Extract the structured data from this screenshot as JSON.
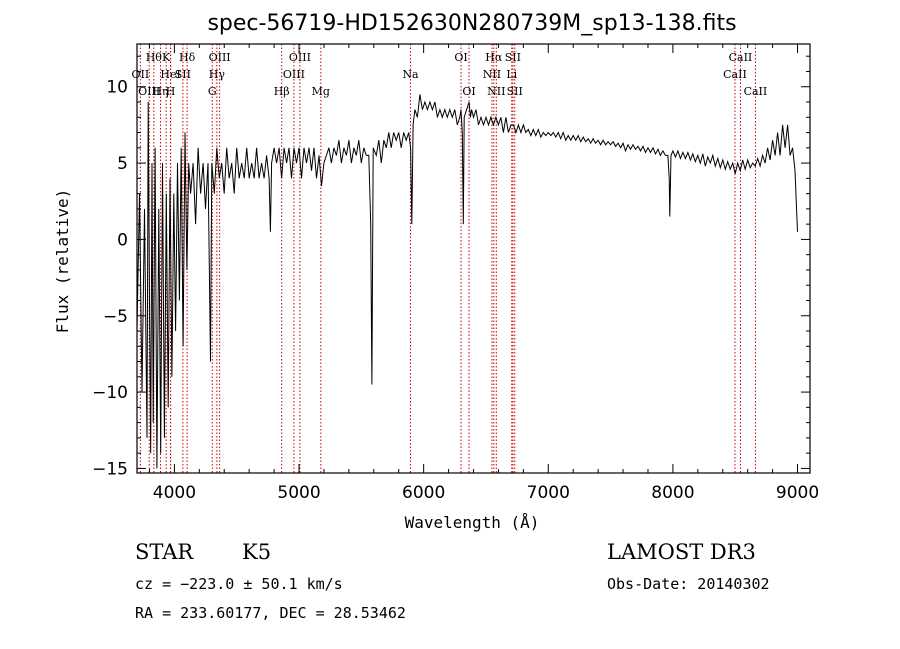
{
  "chart_data": {
    "type": "line",
    "title": "spec-56719-HD152630N280739M_sp13-138.fits",
    "xlabel": "Wavelength (Å)",
    "ylabel": "Flux (relative)",
    "xlim": [
      3700,
      9100
    ],
    "ylim": [
      -15.3,
      12.8
    ],
    "x_ticks": [
      4000,
      5000,
      6000,
      7000,
      8000,
      9000
    ],
    "y_ticks": [
      -15,
      -10,
      -5,
      0,
      5,
      10
    ],
    "grid": false,
    "line_color": "#000000",
    "marker_color": "#cc0000",
    "series": [
      {
        "values": [
          [
            3700,
            -6
          ],
          [
            3720,
            3
          ],
          [
            3740,
            -10
          ],
          [
            3760,
            2
          ],
          [
            3780,
            -13
          ],
          [
            3790,
            9
          ],
          [
            3800,
            -4
          ],
          [
            3810,
            -14
          ],
          [
            3820,
            5
          ],
          [
            3830,
            -12
          ],
          [
            3845,
            6
          ],
          [
            3860,
            -15
          ],
          [
            3875,
            2
          ],
          [
            3890,
            -14
          ],
          [
            3905,
            5
          ],
          [
            3920,
            -13
          ],
          [
            3935,
            3
          ],
          [
            3950,
            -11
          ],
          [
            3965,
            4
          ],
          [
            3980,
            -9
          ],
          [
            3995,
            3
          ],
          [
            4010,
            -6
          ],
          [
            4025,
            5
          ],
          [
            4040,
            -4
          ],
          [
            4055,
            6
          ],
          [
            4070,
            -7
          ],
          [
            4085,
            7
          ],
          [
            4100,
            -2
          ],
          [
            4115,
            5
          ],
          [
            4130,
            3
          ],
          [
            4150,
            5
          ],
          [
            4170,
            1
          ],
          [
            4190,
            6
          ],
          [
            4210,
            3
          ],
          [
            4230,
            5
          ],
          [
            4250,
            2
          ],
          [
            4270,
            5
          ],
          [
            4290,
            -8
          ],
          [
            4300,
            5
          ],
          [
            4320,
            3
          ],
          [
            4340,
            6
          ],
          [
            4360,
            4
          ],
          [
            4380,
            5
          ],
          [
            4400,
            3
          ],
          [
            4420,
            6
          ],
          [
            4440,
            4
          ],
          [
            4460,
            5
          ],
          [
            4480,
            3
          ],
          [
            4500,
            6
          ],
          [
            4520,
            4
          ],
          [
            4540,
            5
          ],
          [
            4560,
            4
          ],
          [
            4580,
            6
          ],
          [
            4600,
            4
          ],
          [
            4620,
            5
          ],
          [
            4640,
            4
          ],
          [
            4660,
            6
          ],
          [
            4680,
            4
          ],
          [
            4700,
            5
          ],
          [
            4720,
            4
          ],
          [
            4740,
            5.5
          ],
          [
            4760,
            4
          ],
          [
            4770,
            0.5
          ],
          [
            4780,
            5
          ],
          [
            4800,
            6
          ],
          [
            4820,
            5
          ],
          [
            4840,
            6
          ],
          [
            4860,
            4
          ],
          [
            4880,
            6
          ],
          [
            4900,
            5
          ],
          [
            4920,
            6
          ],
          [
            4940,
            4
          ],
          [
            4960,
            6
          ],
          [
            4980,
            5
          ],
          [
            5000,
            6
          ],
          [
            5020,
            4
          ],
          [
            5040,
            6
          ],
          [
            5060,
            5
          ],
          [
            5080,
            6
          ],
          [
            5100,
            4.5
          ],
          [
            5120,
            6
          ],
          [
            5140,
            4
          ],
          [
            5160,
            5.5
          ],
          [
            5180,
            3.5
          ],
          [
            5200,
            5
          ],
          [
            5220,
            5.5
          ],
          [
            5240,
            6
          ],
          [
            5260,
            5
          ],
          [
            5280,
            6
          ],
          [
            5300,
            5.5
          ],
          [
            5320,
            6.5
          ],
          [
            5340,
            5
          ],
          [
            5360,
            6
          ],
          [
            5380,
            5.5
          ],
          [
            5400,
            6.5
          ],
          [
            5420,
            5
          ],
          [
            5440,
            6
          ],
          [
            5460,
            5.5
          ],
          [
            5480,
            6.5
          ],
          [
            5500,
            5
          ],
          [
            5520,
            6
          ],
          [
            5540,
            5.5
          ],
          [
            5560,
            5.5
          ],
          [
            5575,
            1
          ],
          [
            5585,
            -9.5
          ],
          [
            5595,
            6
          ],
          [
            5620,
            5.5
          ],
          [
            5640,
            6.5
          ],
          [
            5660,
            5
          ],
          [
            5680,
            6.5
          ],
          [
            5700,
            6
          ],
          [
            5720,
            7
          ],
          [
            5740,
            6
          ],
          [
            5760,
            7
          ],
          [
            5780,
            6.5
          ],
          [
            5800,
            7
          ],
          [
            5820,
            6
          ],
          [
            5840,
            7
          ],
          [
            5860,
            6.5
          ],
          [
            5880,
            7
          ],
          [
            5895,
            6
          ],
          [
            5905,
            1
          ],
          [
            5915,
            7.5
          ],
          [
            5930,
            8.5
          ],
          [
            5950,
            8
          ],
          [
            5970,
            9.5
          ],
          [
            5990,
            8.5
          ],
          [
            6010,
            9
          ],
          [
            6030,
            8.5
          ],
          [
            6050,
            9
          ],
          [
            6070,
            8.5
          ],
          [
            6090,
            9
          ],
          [
            6110,
            8
          ],
          [
            6130,
            8.5
          ],
          [
            6150,
            8
          ],
          [
            6170,
            8.5
          ],
          [
            6190,
            8
          ],
          [
            6210,
            8.5
          ],
          [
            6230,
            8
          ],
          [
            6250,
            8.5
          ],
          [
            6270,
            7.5
          ],
          [
            6290,
            8
          ],
          [
            6300,
            8.5
          ],
          [
            6310,
            7
          ],
          [
            6318,
            1
          ],
          [
            6325,
            8
          ],
          [
            6345,
            8.5
          ],
          [
            6365,
            9
          ],
          [
            6375,
            8
          ],
          [
            6385,
            8.5
          ],
          [
            6400,
            8
          ],
          [
            6420,
            8.5
          ],
          [
            6440,
            7.5
          ],
          [
            6460,
            8
          ],
          [
            6480,
            7.5
          ],
          [
            6500,
            8
          ],
          [
            6520,
            7.5
          ],
          [
            6540,
            8
          ],
          [
            6560,
            7.5
          ],
          [
            6580,
            8
          ],
          [
            6600,
            7.5
          ],
          [
            6620,
            8
          ],
          [
            6640,
            7
          ],
          [
            6660,
            8
          ],
          [
            6680,
            7
          ],
          [
            6700,
            7.5
          ],
          [
            6720,
            7.5
          ],
          [
            6740,
            7
          ],
          [
            6760,
            7.5
          ],
          [
            6780,
            7
          ],
          [
            6800,
            7.5
          ],
          [
            6820,
            7
          ],
          [
            6840,
            7.2
          ],
          [
            6860,
            6.8
          ],
          [
            6880,
            7.2
          ],
          [
            6900,
            6.8
          ],
          [
            6920,
            7.2
          ],
          [
            6940,
            6.7
          ],
          [
            6960,
            7
          ],
          [
            6980,
            6.8
          ],
          [
            7000,
            7
          ],
          [
            7020,
            6.8
          ],
          [
            7040,
            7
          ],
          [
            7060,
            6.7
          ],
          [
            7080,
            7
          ],
          [
            7100,
            6.6
          ],
          [
            7120,
            7
          ],
          [
            7140,
            6.5
          ],
          [
            7160,
            6.8
          ],
          [
            7180,
            6.5
          ],
          [
            7200,
            6.8
          ],
          [
            7220,
            6.5
          ],
          [
            7240,
            6.8
          ],
          [
            7260,
            6.4
          ],
          [
            7280,
            6.7
          ],
          [
            7300,
            6.4
          ],
          [
            7320,
            6.6
          ],
          [
            7340,
            6.3
          ],
          [
            7360,
            6.6
          ],
          [
            7380,
            6.3
          ],
          [
            7400,
            6.5
          ],
          [
            7420,
            6.2
          ],
          [
            7440,
            6.5
          ],
          [
            7460,
            6.2
          ],
          [
            7480,
            6.4
          ],
          [
            7500,
            6.2
          ],
          [
            7520,
            6.4
          ],
          [
            7540,
            6.1
          ],
          [
            7560,
            6.3
          ],
          [
            7580,
            6
          ],
          [
            7600,
            6.3
          ],
          [
            7620,
            5.8
          ],
          [
            7640,
            6.2
          ],
          [
            7660,
            5.9
          ],
          [
            7680,
            6.2
          ],
          [
            7700,
            5.9
          ],
          [
            7720,
            6.1
          ],
          [
            7740,
            5.8
          ],
          [
            7760,
            6.1
          ],
          [
            7780,
            5.7
          ],
          [
            7800,
            6
          ],
          [
            7820,
            5.7
          ],
          [
            7840,
            6
          ],
          [
            7860,
            5.6
          ],
          [
            7880,
            5.9
          ],
          [
            7900,
            5.5
          ],
          [
            7920,
            5.8
          ],
          [
            7940,
            5.5
          ],
          [
            7960,
            5.5
          ],
          [
            7970,
            4
          ],
          [
            7975,
            1.5
          ],
          [
            7985,
            5.5
          ],
          [
            8000,
            5.8
          ],
          [
            8020,
            5.4
          ],
          [
            8040,
            5.8
          ],
          [
            8060,
            5.3
          ],
          [
            8080,
            5.7
          ],
          [
            8100,
            5.3
          ],
          [
            8120,
            5.7
          ],
          [
            8140,
            5.2
          ],
          [
            8160,
            5.6
          ],
          [
            8180,
            5.1
          ],
          [
            8200,
            5.5
          ],
          [
            8220,
            5
          ],
          [
            8240,
            5.6
          ],
          [
            8260,
            4.8
          ],
          [
            8280,
            5.4
          ],
          [
            8300,
            5
          ],
          [
            8320,
            5.5
          ],
          [
            8340,
            4.8
          ],
          [
            8360,
            5.3
          ],
          [
            8380,
            4.7
          ],
          [
            8400,
            5.2
          ],
          [
            8420,
            4.6
          ],
          [
            8440,
            5.1
          ],
          [
            8460,
            4.6
          ],
          [
            8480,
            5
          ],
          [
            8500,
            4.3
          ],
          [
            8520,
            5
          ],
          [
            8540,
            4.5
          ],
          [
            8560,
            5.2
          ],
          [
            8580,
            4.6
          ],
          [
            8600,
            5.2
          ],
          [
            8620,
            4.7
          ],
          [
            8640,
            5
          ],
          [
            8660,
            4.8
          ],
          [
            8680,
            5.3
          ],
          [
            8700,
            4.8
          ],
          [
            8720,
            5.5
          ],
          [
            8740,
            5
          ],
          [
            8760,
            6
          ],
          [
            8780,
            5.2
          ],
          [
            8800,
            6.5
          ],
          [
            8820,
            5.5
          ],
          [
            8840,
            7
          ],
          [
            8860,
            5.5
          ],
          [
            8880,
            7.5
          ],
          [
            8900,
            6
          ],
          [
            8920,
            7.5
          ],
          [
            8940,
            5.5
          ],
          [
            8960,
            6
          ],
          [
            8980,
            4.5
          ],
          [
            9000,
            0.5
          ]
        ]
      }
    ],
    "line_markers": [
      {
        "wavelength": 3727,
        "label": "OII",
        "row": 1
      },
      {
        "wavelength": 3798,
        "label": "OIII",
        "row": 2
      },
      {
        "wavelength": 3835,
        "label": "Hθ",
        "row": 0
      },
      {
        "wavelength": 3889,
        "label": "Hη",
        "row": 2
      },
      {
        "wavelength": 3934,
        "label": "K",
        "row": 0
      },
      {
        "wavelength": 3969,
        "label": "H",
        "row": 2
      },
      {
        "wavelength": 3970,
        "label": "HeI",
        "row": 1
      },
      {
        "wavelength": 4068,
        "label": "SII",
        "row": 1
      },
      {
        "wavelength": 4102,
        "label": "Hδ",
        "row": 0
      },
      {
        "wavelength": 4304,
        "label": "G",
        "row": 2
      },
      {
        "wavelength": 4341,
        "label": "Hγ",
        "row": 1
      },
      {
        "wavelength": 4363,
        "label": "OIII",
        "row": 0
      },
      {
        "wavelength": 4861,
        "label": "Hβ",
        "row": 2
      },
      {
        "wavelength": 4959,
        "label": "OIII",
        "row": 1
      },
      {
        "wavelength": 5007,
        "label": "OIII",
        "row": 0
      },
      {
        "wavelength": 5175,
        "label": "Mg",
        "row": 2
      },
      {
        "wavelength": 5894,
        "label": "Na",
        "row": 1
      },
      {
        "wavelength": 6300,
        "label": "OI",
        "row": 0
      },
      {
        "wavelength": 6364,
        "label": "OI",
        "row": 2
      },
      {
        "wavelength": 6548,
        "label": "NII",
        "row": 1
      },
      {
        "wavelength": 6563,
        "label": "Hα",
        "row": 0
      },
      {
        "wavelength": 6583,
        "label": "NII",
        "row": 2
      },
      {
        "wavelength": 6707,
        "label": "Li",
        "row": 1
      },
      {
        "wavelength": 6716,
        "label": "SII",
        "row": 0
      },
      {
        "wavelength": 6731,
        "label": "SII",
        "row": 2
      },
      {
        "wavelength": 8498,
        "label": "CaII",
        "row": 1
      },
      {
        "wavelength": 8542,
        "label": "CaII",
        "row": 0
      },
      {
        "wavelength": 8662,
        "label": "CaII",
        "row": 2
      }
    ]
  },
  "info": {
    "class_label": "STAR",
    "subclass_label": "K5",
    "velocity": "cz = −223.0 ± 50.1 km/s",
    "coordinates": "RA = 233.60177, DEC =  28.53462",
    "survey": "LAMOST DR3",
    "obs_date": "Obs-Date: 20140302"
  }
}
